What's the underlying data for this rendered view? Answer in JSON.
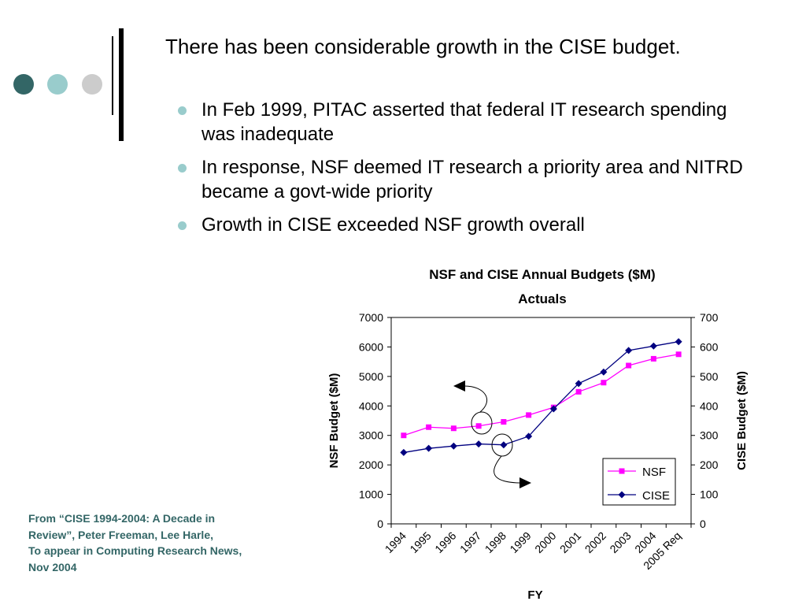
{
  "colors": {
    "dot1": "#336666",
    "dot2": "#99CCCC",
    "dot3": "#CCCCCC",
    "bullet": "#99CCCC",
    "source_text": "#336666",
    "nsf_series": "#FF00FF",
    "cise_series": "#000080"
  },
  "slide": {
    "title": "There has been considerable growth in the CISE budget.",
    "bullets": [
      "In Feb 1999, PITAC asserted that federal IT research spending was inadequate",
      "In response, NSF deemed IT research a priority area and NITRD became a govt-wide priority",
      "Growth in CISE exceeded NSF growth overall"
    ],
    "source_lines": [
      "From “CISE 1994-2004: A Decade in",
      "Review”, Peter Freeman, Lee Harle,",
      "To appear in Computing Research News,",
      "Nov 2004"
    ]
  },
  "chart_data": {
    "type": "line",
    "title_lines": [
      "NSF and CISE Annual Budgets ($M)",
      "Actuals"
    ],
    "xlabel": "FY",
    "ylabel_left": "NSF Budget ($M)",
    "ylabel_right": "CISE Budget ($M)",
    "categories": [
      "1994",
      "1995",
      "1996",
      "1997",
      "1998",
      "1999",
      "2000",
      "2001",
      "2002",
      "2003",
      "2004",
      "2005 Req"
    ],
    "ylim_left": [
      0,
      7000
    ],
    "ylim_right": [
      0,
      700
    ],
    "yticks_left": [
      "0",
      "1000",
      "2000",
      "3000",
      "4000",
      "5000",
      "6000",
      "7000"
    ],
    "yticks_right": [
      "0",
      "100",
      "200",
      "300",
      "400",
      "500",
      "600",
      "700"
    ],
    "grid": false,
    "legend_position": "bottom-right",
    "series": [
      {
        "name": "NSF",
        "axis": "left",
        "marker": "square",
        "values": [
          3000,
          3280,
          3240,
          3320,
          3460,
          3690,
          3950,
          4480,
          4790,
          5370,
          5600,
          5750
        ]
      },
      {
        "name": "CISE",
        "axis": "right",
        "marker": "diamond",
        "values": [
          242,
          256,
          264,
          271,
          268,
          297,
          390,
          476,
          515,
          588,
          603,
          618
        ]
      }
    ]
  }
}
